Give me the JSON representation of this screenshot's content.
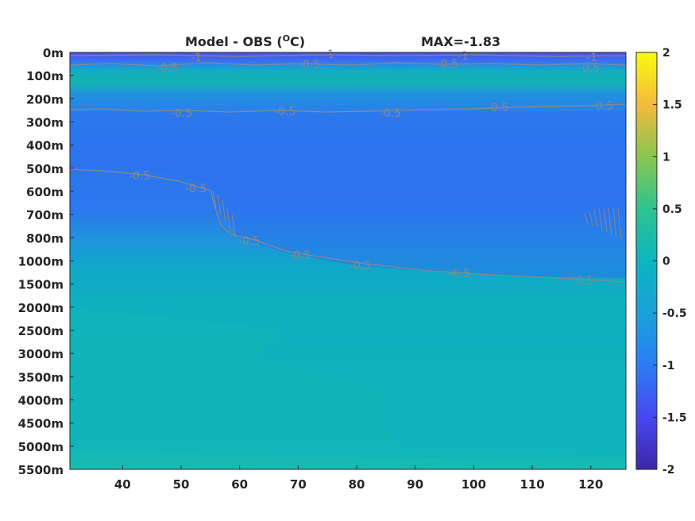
{
  "chart_data": {
    "type": "heatmap",
    "title": "Model - OBS (°C)",
    "title_left": "Model - OBS (",
    "title_degree": "O",
    "title_right": "C)",
    "annotation": "MAX=-1.83",
    "xlabel": "",
    "ylabel": "",
    "x_ticks": [
      40,
      50,
      60,
      70,
      80,
      90,
      100,
      110,
      120
    ],
    "xlim": [
      31,
      126
    ],
    "y_ticks": [
      "0m",
      "100m",
      "200m",
      "300m",
      "400m",
      "500m",
      "600m",
      "700m",
      "800m",
      "1000m",
      "1500m",
      "2000m",
      "2500m",
      "3000m",
      "3500m",
      "4000m",
      "4500m",
      "5000m",
      "5500m"
    ],
    "colorbar": {
      "ticks": [
        2,
        1.5,
        1,
        0.5,
        0,
        -0.5,
        -1,
        -1.5,
        -2
      ],
      "tick_labels": [
        "2",
        "1.5",
        "1",
        "0.5",
        "0",
        "-0.5",
        "-1",
        "-1.5",
        "-2"
      ],
      "clim": [
        -2,
        2
      ],
      "colormap": "parula"
    },
    "grid": false,
    "contours": [
      {
        "level": -1,
        "label": "-1",
        "depth_index": 0.05,
        "x": [
          31,
          126
        ]
      },
      {
        "level": -0.5,
        "label": "-0.5",
        "depth_index": 0.6,
        "x": [
          31,
          126
        ]
      },
      {
        "level": -0.5,
        "label": "-0.5",
        "depth_index": 2.5,
        "x": [
          31,
          126
        ]
      },
      {
        "level": -0.5,
        "label": "-0.5",
        "note": "shallow-to-deep",
        "points": [
          [
            31,
            5.0
          ],
          [
            45,
            5.3
          ],
          [
            52,
            5.6
          ],
          [
            56,
            6.0
          ],
          [
            57,
            6.8
          ],
          [
            58,
            7.7
          ],
          [
            62,
            8.1
          ],
          [
            67,
            8.4
          ],
          [
            74,
            8.9
          ],
          [
            82,
            9.2
          ],
          [
            95,
            9.6
          ],
          [
            110,
            9.8
          ],
          [
            126,
            9.95
          ]
        ]
      }
    ],
    "contour_labels": [
      {
        "text": "-0.5",
        "x": 48,
        "depth_index": 0.65
      },
      {
        "text": "-0.5",
        "x": 74,
        "depth_index": 0.55
      },
      {
        "text": "-0.5",
        "x": 98,
        "depth_index": 0.5
      },
      {
        "text": "-0.5",
        "x": 123,
        "depth_index": 0.65
      },
      {
        "text": "-1",
        "x": 51,
        "depth_index": 0.2
      },
      {
        "text": "-1",
        "x": 76,
        "depth_index": 0.05
      },
      {
        "text": "-1",
        "x": 99,
        "depth_index": 0.1
      },
      {
        "text": "-1",
        "x": 122,
        "depth_index": 0.2
      },
      {
        "text": "-0.5",
        "x": 51,
        "depth_index": 2.65
      },
      {
        "text": "-0.5",
        "x": 69,
        "depth_index": 2.6
      },
      {
        "text": "-0.5",
        "x": 86,
        "depth_index": 2.65
      },
      {
        "text": "-0.5",
        "x": 104,
        "depth_index": 2.45
      },
      {
        "text": "-0.5",
        "x": 123,
        "depth_index": 2.4
      },
      {
        "text": "-0.5",
        "x": 45,
        "depth_index": 5.3
      },
      {
        "text": "-0.5",
        "x": 55,
        "depth_index": 5.8
      },
      {
        "text": "-0.5",
        "x": 64,
        "depth_index": 8.2
      },
      {
        "text": "-0.5",
        "x": 75,
        "depth_index": 8.8
      },
      {
        "text": "-0.5",
        "x": 84,
        "depth_index": 9.2
      },
      {
        "text": "-0.5",
        "x": 100,
        "depth_index": 9.6
      },
      {
        "text": "-0.5",
        "x": 121,
        "depth_index": 9.9
      }
    ]
  }
}
